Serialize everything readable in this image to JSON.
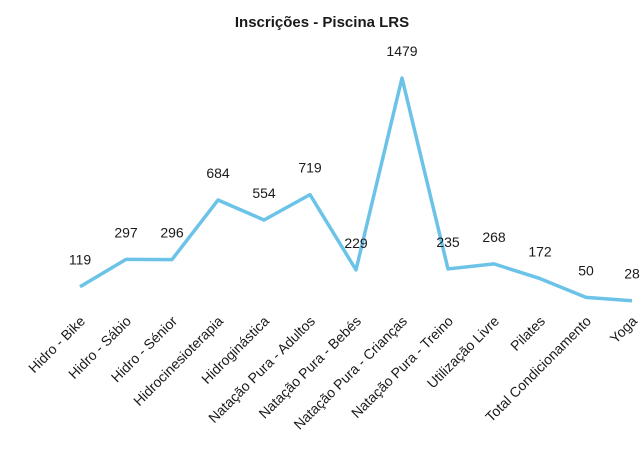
{
  "chart_data": {
    "type": "line",
    "title": "Inscrições - Piscina LRS",
    "categories": [
      "Hidro - Bike",
      "Hidro - Sábio",
      "Hidro - Sénior",
      "Hidrocinesioterapia",
      "Hidroginástica",
      "Natação Pura - Adultos",
      "Natação Pura - Bebés",
      "Natação Pura - Crianças",
      "Natação Pura - Treino",
      "Utilização Livre",
      "Pilates",
      "Total Condicionamento",
      "Yoga"
    ],
    "values": [
      119,
      297,
      296,
      684,
      554,
      719,
      229,
      1479,
      235,
      268,
      172,
      50,
      28
    ],
    "color": "#6cc3e8"
  }
}
